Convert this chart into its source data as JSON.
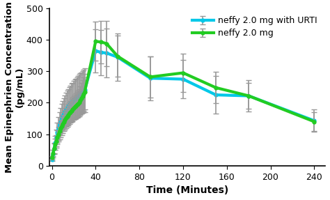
{
  "title": "",
  "xlabel": "Time (Minutes)",
  "ylabel": "Mean Epinephrien Concentration\n(pg/mL)",
  "xlim": [
    -2,
    250
  ],
  "ylim": [
    0,
    500
  ],
  "xticks": [
    0,
    40,
    80,
    120,
    160,
    200,
    240
  ],
  "yticks": [
    0,
    100,
    200,
    300,
    400,
    500
  ],
  "neffy_x": [
    0,
    1,
    2,
    3,
    4,
    5,
    6,
    7,
    8,
    9,
    10,
    11,
    12,
    13,
    14,
    15,
    16,
    17,
    18,
    19,
    20,
    21,
    22,
    23,
    24,
    25,
    26,
    27,
    28,
    29,
    30,
    40,
    45,
    50,
    60,
    90,
    120,
    150,
    180,
    240
  ],
  "neffy_y": [
    25,
    40,
    55,
    68,
    78,
    90,
    100,
    110,
    118,
    126,
    133,
    140,
    146,
    152,
    157,
    162,
    167,
    171,
    175,
    179,
    183,
    187,
    190,
    194,
    197,
    200,
    207,
    214,
    221,
    228,
    235,
    395,
    393,
    388,
    348,
    282,
    295,
    248,
    222,
    140
  ],
  "neffy_yerr": [
    5,
    10,
    15,
    18,
    20,
    22,
    24,
    26,
    27,
    28,
    29,
    30,
    31,
    32,
    33,
    34,
    35,
    35,
    36,
    37,
    38,
    39,
    40,
    41,
    42,
    43,
    45,
    48,
    50,
    53,
    56,
    62,
    67,
    72,
    65,
    65,
    60,
    50,
    40,
    30
  ],
  "neffy_color": "#22cc22",
  "neffy_label": "neffy 2.0 mg",
  "urti_x": [
    0,
    1,
    2,
    3,
    4,
    5,
    6,
    7,
    8,
    9,
    10,
    11,
    12,
    13,
    14,
    15,
    16,
    17,
    18,
    19,
    20,
    21,
    22,
    23,
    24,
    25,
    26,
    27,
    28,
    29,
    30,
    40,
    45,
    50,
    60,
    90,
    120,
    150,
    180,
    240
  ],
  "urti_y": [
    20,
    38,
    55,
    72,
    88,
    105,
    118,
    130,
    140,
    150,
    158,
    165,
    172,
    178,
    184,
    189,
    194,
    198,
    202,
    206,
    210,
    213,
    216,
    219,
    222,
    225,
    228,
    231,
    234,
    237,
    240,
    365,
    360,
    358,
    345,
    278,
    275,
    225,
    222,
    143
  ],
  "urti_yerr": [
    5,
    12,
    18,
    22,
    27,
    32,
    36,
    40,
    43,
    46,
    48,
    50,
    52,
    53,
    54,
    55,
    56,
    57,
    58,
    58,
    59,
    60,
    61,
    62,
    63,
    64,
    65,
    66,
    67,
    68,
    70,
    68,
    72,
    78,
    76,
    70,
    60,
    60,
    50,
    35
  ],
  "urti_color": "#00c8e8",
  "urti_label": "neffy 2.0 mg with URTI",
  "error_color": "#999999",
  "marker": "o",
  "markersize": 3.5,
  "linewidth": 3.0,
  "elinewidth": 1.2,
  "capsize": 3,
  "legend_fontsize": 9,
  "axis_label_fontsize": 10,
  "tick_fontsize": 9
}
